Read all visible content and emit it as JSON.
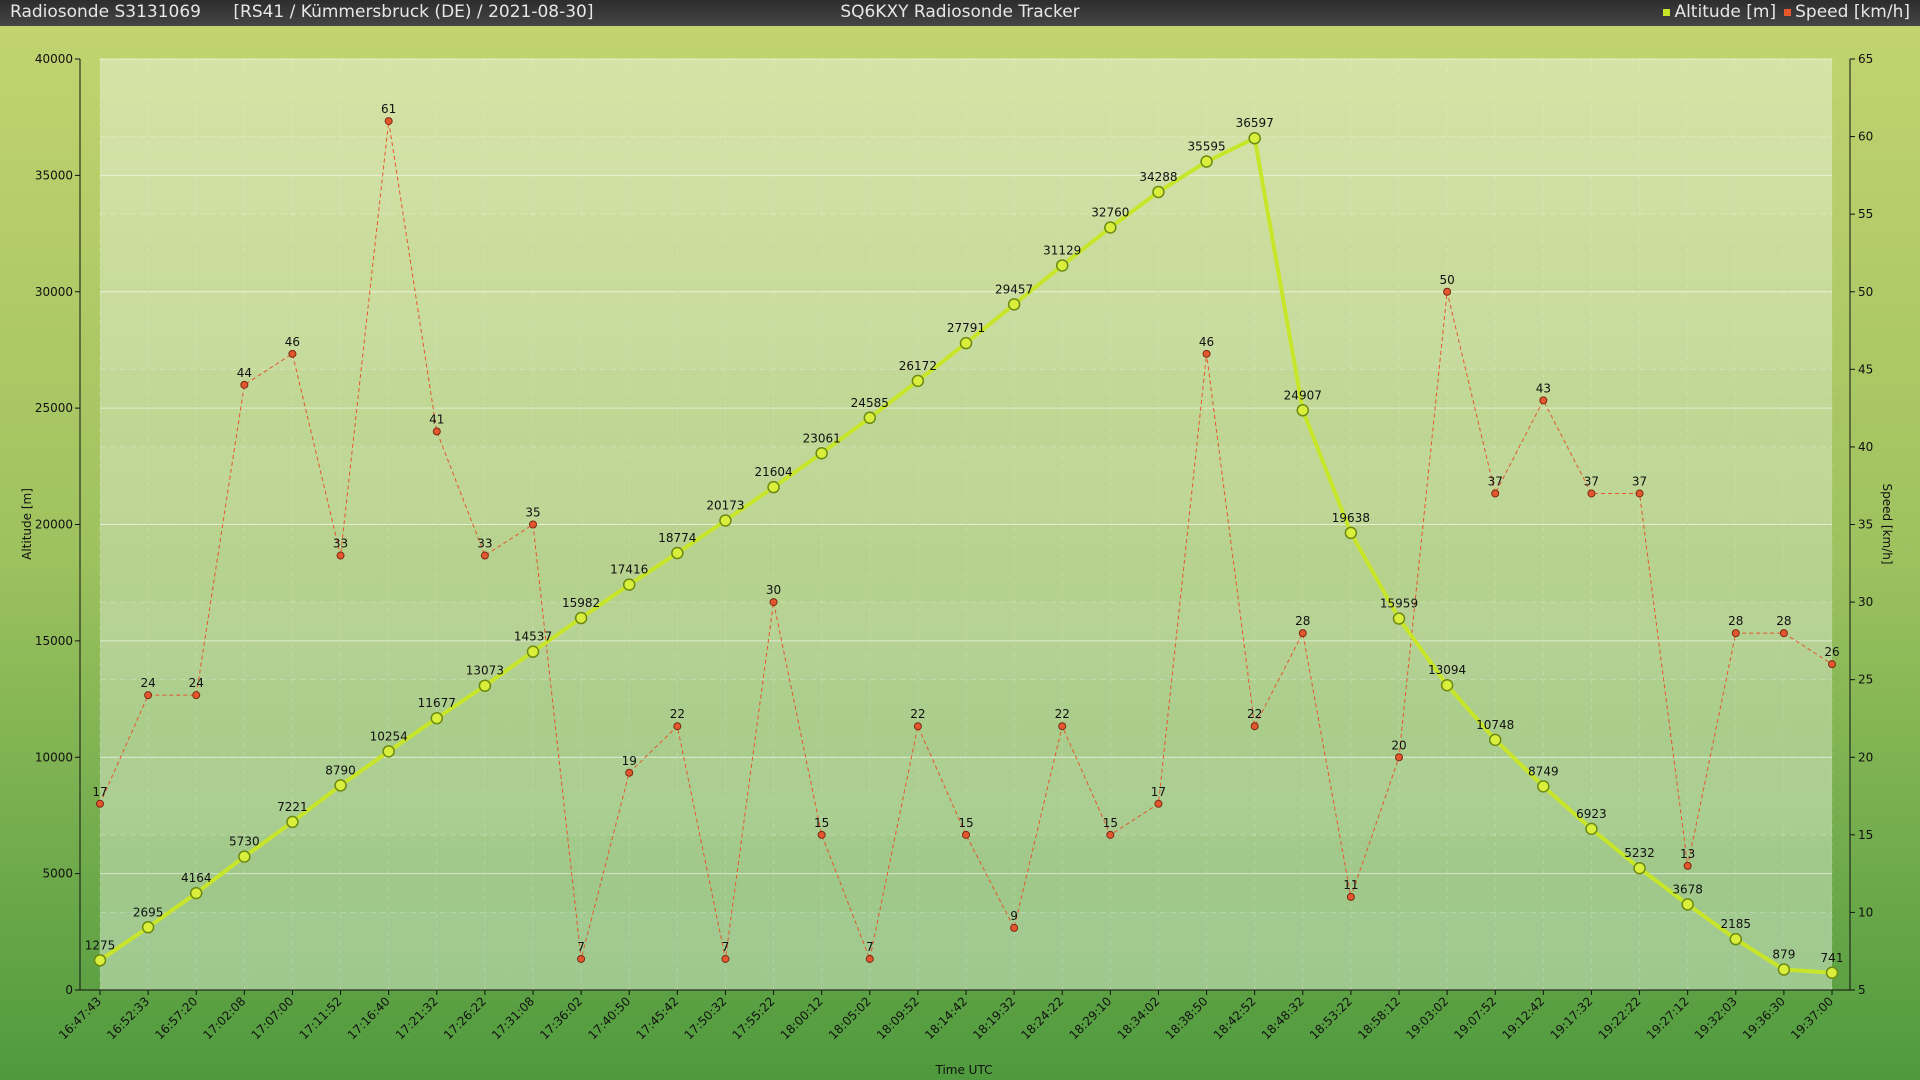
{
  "header": {
    "left_title": "Radiosonde S3131069      [RS41 / Kümmersbruck (DE) / 2021-08-30]",
    "center_title": "SQ6KXY Radiosonde Tracker",
    "legend_altitude": "Altitude [m]",
    "legend_speed": "Speed [km/h]"
  },
  "colors": {
    "altitude": "#c8e629",
    "speed": "#e4572e",
    "bg_top": "#c4d679",
    "bg_bottom": "#5da04a"
  },
  "chart_data": {
    "type": "line",
    "xlabel": "Time UTC",
    "ylabel": "Altitude [m]",
    "y2label": "Speed [km/h]",
    "ylim": [
      0,
      40000
    ],
    "y2lim": [
      5,
      65
    ],
    "yticks": [
      0,
      5000,
      10000,
      15000,
      20000,
      25000,
      30000,
      35000,
      40000
    ],
    "y2ticks": [
      5,
      10,
      15,
      20,
      25,
      30,
      35,
      40,
      45,
      50,
      55,
      60,
      65
    ],
    "grid": true,
    "legend": "top-right",
    "x": [
      "16:47:43",
      "16:52:33",
      "16:57:20",
      "17:02:08",
      "17:07:00",
      "17:11:52",
      "17:16:40",
      "17:21:32",
      "17:26:22",
      "17:31:08",
      "17:36:02",
      "17:40:50",
      "17:45:42",
      "17:50:32",
      "17:55:22",
      "18:00:12",
      "18:05:02",
      "18:09:52",
      "18:14:42",
      "18:19:32",
      "18:24:22",
      "18:29:10",
      "18:34:02",
      "18:38:50",
      "18:42:52",
      "18:48:32",
      "18:53:22",
      "18:58:12",
      "19:03:02",
      "19:07:52",
      "19:12:42",
      "19:17:32",
      "19:22:22",
      "19:27:12",
      "19:32:03",
      "19:36:30",
      "19:37:00"
    ],
    "series": [
      {
        "name": "Altitude [m]",
        "axis": "left",
        "values": [
          1275,
          2695,
          4164,
          5730,
          7221,
          8790,
          10254,
          11677,
          13073,
          14537,
          15982,
          17416,
          18774,
          20173,
          21604,
          23061,
          24585,
          26172,
          27791,
          29457,
          31129,
          32760,
          34288,
          35595,
          36597,
          24907,
          19638,
          15959,
          13094,
          10748,
          8749,
          6923,
          5232,
          3678,
          2185,
          879,
          741
        ]
      },
      {
        "name": "Speed [km/h]",
        "axis": "right",
        "values": [
          17,
          24,
          24,
          44,
          46,
          33,
          61,
          41,
          33,
          35,
          7,
          19,
          22,
          7,
          30,
          15,
          7,
          22,
          15,
          9,
          22,
          15,
          17,
          46,
          22,
          28,
          11,
          20,
          50,
          37,
          43,
          37,
          37,
          13,
          28,
          28,
          26
        ]
      }
    ]
  }
}
